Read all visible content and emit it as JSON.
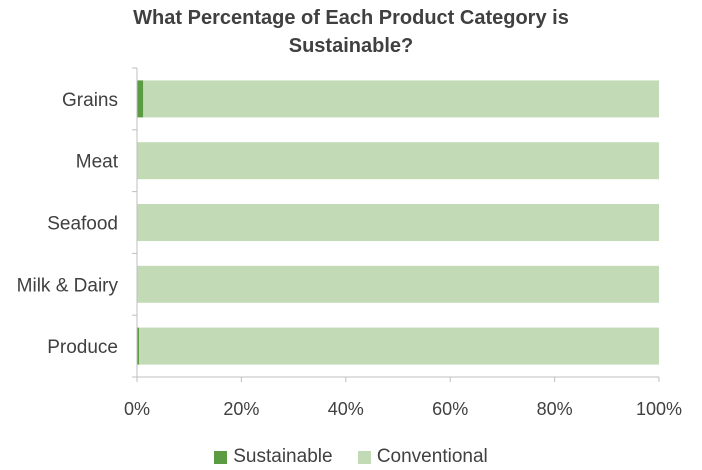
{
  "chart_data": {
    "type": "bar",
    "orientation": "horizontal",
    "stacked": true,
    "title": "What Percentage of Each Product Category is Sustainable?",
    "title_lines": [
      "What Percentage of Each Product Category is",
      "Sustainable?"
    ],
    "categories": [
      "Grains",
      "Meat",
      "Seafood",
      "Milk & Dairy",
      "Produce"
    ],
    "series": [
      {
        "name": "Sustainable",
        "color": "#5b9b42",
        "values": [
          1.2,
          0,
          0,
          0,
          0.4
        ]
      },
      {
        "name": "Conventional",
        "color": "#c2dbb6",
        "values": [
          98.8,
          100,
          100,
          100,
          99.6
        ]
      }
    ],
    "xlim": [
      0,
      100
    ],
    "xticks": [
      0,
      20,
      40,
      60,
      80,
      100
    ],
    "xtick_labels": [
      "0%",
      "20%",
      "40%",
      "60%",
      "80%",
      "100%"
    ],
    "grid": false,
    "legend_position": "bottom"
  }
}
